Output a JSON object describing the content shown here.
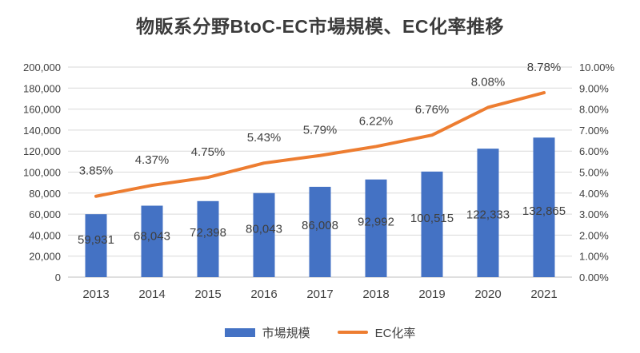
{
  "chart_data": {
    "type": "bar",
    "subtype": "bar-line-combo",
    "title": "物販系分野BtoC-EC市場規模、EC化率推移",
    "categories": [
      "2013",
      "2014",
      "2015",
      "2016",
      "2017",
      "2018",
      "2019",
      "2020",
      "2021"
    ],
    "series": [
      {
        "name": "市場規模",
        "type": "bar",
        "axis": "left",
        "color": "#4472C4",
        "values": [
          59931,
          68043,
          72398,
          80043,
          86008,
          92992,
          100515,
          122333,
          132865
        ],
        "labels": [
          "59,931",
          "68,043",
          "72,398",
          "80,043",
          "86,008",
          "92,992",
          "100,515",
          "122,333",
          "132,865"
        ]
      },
      {
        "name": "EC化率",
        "type": "line",
        "axis": "right",
        "color": "#ED7D31",
        "values": [
          3.85,
          4.37,
          4.75,
          5.43,
          5.79,
          6.22,
          6.76,
          8.08,
          8.78
        ],
        "labels": [
          "3.85%",
          "4.37%",
          "4.75%",
          "5.43%",
          "5.79%",
          "6.22%",
          "6.76%",
          "8.08%",
          "8.78%"
        ]
      }
    ],
    "left_axis": {
      "min": 0,
      "max": 200000,
      "step": 20000,
      "tick_labels": [
        "0",
        "20,000",
        "40,000",
        "60,000",
        "80,000",
        "100,000",
        "120,000",
        "140,000",
        "160,000",
        "180,000",
        "200,000"
      ]
    },
    "right_axis": {
      "min": 0,
      "max": 10,
      "step": 1,
      "tick_labels": [
        "0.00%",
        "1.00%",
        "2.00%",
        "3.00%",
        "4.00%",
        "5.00%",
        "6.00%",
        "7.00%",
        "8.00%",
        "9.00%",
        "10.00%"
      ]
    },
    "grid": true,
    "legend_position": "bottom",
    "colors": {
      "gridline": "#D9D9D9",
      "axis_line": "#BFBFBF",
      "text": "#404040",
      "background": "#FFFFFF"
    }
  }
}
